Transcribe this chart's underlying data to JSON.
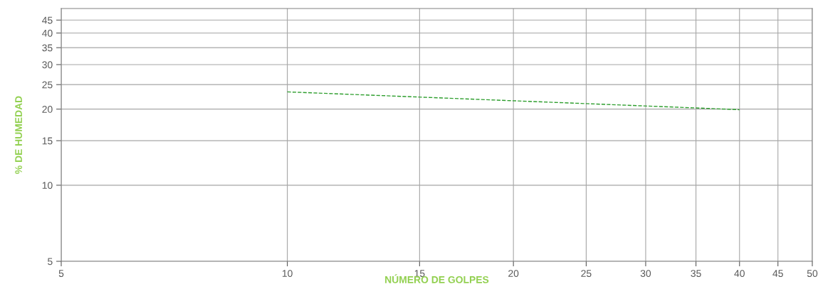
{
  "chart_data": {
    "type": "line",
    "xlabel": "NÚMERO DE GOLPES",
    "ylabel": "% DE HUMEDAD",
    "series": [
      {
        "x": [
          10,
          40
        ],
        "values": [
          23.4,
          19.9
        ],
        "color": "#2e9e2e",
        "line_style": "dashed",
        "marker": "none"
      }
    ],
    "xlim": [
      5,
      50
    ],
    "xticks": [
      5,
      10,
      15,
      20,
      25,
      30,
      35,
      40,
      45,
      50
    ],
    "ylim": [
      5,
      50
    ],
    "yticks": [
      5,
      10,
      15,
      20,
      25,
      30,
      35,
      40,
      45
    ],
    "log": "xy",
    "grid": true,
    "legend": false
  }
}
